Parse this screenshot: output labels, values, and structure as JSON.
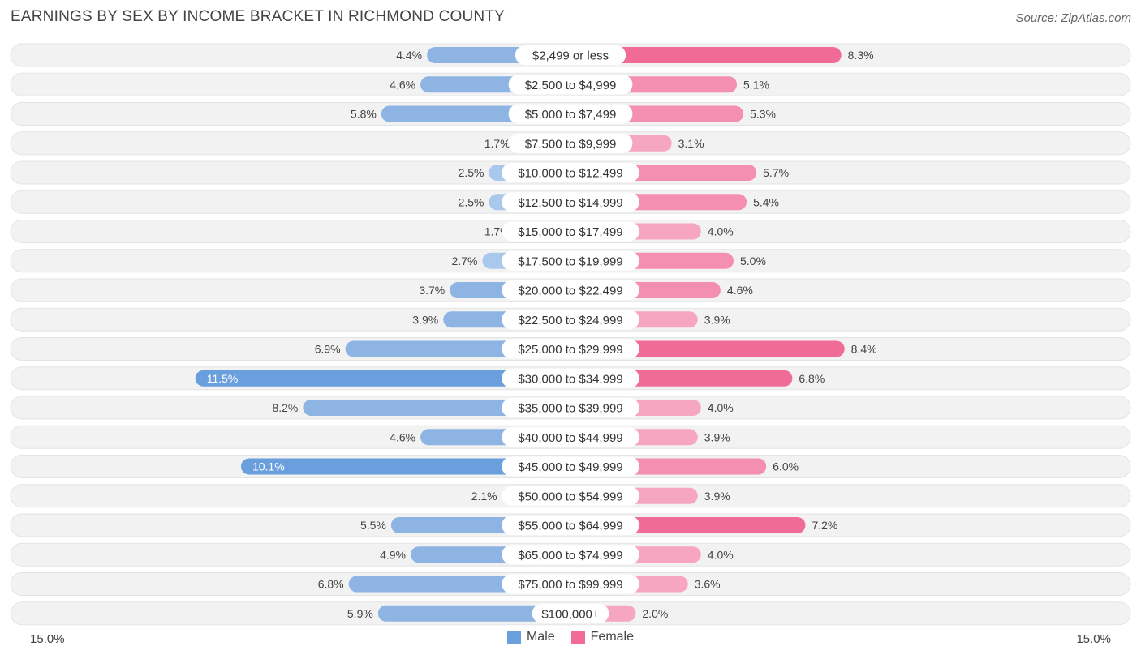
{
  "title": "EARNINGS BY SEX BY INCOME BRACKET IN RICHMOND COUNTY",
  "source": "Source: ZipAtlas.com",
  "colors": {
    "male": "#8db4e2",
    "male_strong": "#6a9fde",
    "female": "#f48fb1",
    "female_strong": "#f06c96",
    "row_bg": "#f2f2f2"
  },
  "chart_data": {
    "type": "bar",
    "orientation": "horizontal-diverging",
    "title": "EARNINGS BY SEX BY INCOME BRACKET IN RICHMOND COUNTY",
    "categories": [
      "$2,499 or less",
      "$2,500 to $4,999",
      "$5,000 to $7,499",
      "$7,500 to $9,999",
      "$10,000 to $12,499",
      "$12,500 to $14,999",
      "$15,000 to $17,499",
      "$17,500 to $19,999",
      "$20,000 to $22,499",
      "$22,500 to $24,999",
      "$25,000 to $29,999",
      "$30,000 to $34,999",
      "$35,000 to $39,999",
      "$40,000 to $44,999",
      "$45,000 to $49,999",
      "$50,000 to $54,999",
      "$55,000 to $64,999",
      "$65,000 to $74,999",
      "$75,000 to $99,999",
      "$100,000+"
    ],
    "series": [
      {
        "name": "Male",
        "values": [
          4.4,
          4.6,
          5.8,
          1.7,
          2.5,
          2.5,
          1.7,
          2.7,
          3.7,
          3.9,
          6.9,
          11.5,
          8.2,
          4.6,
          10.1,
          2.1,
          5.5,
          4.9,
          6.8,
          5.9
        ],
        "labels": [
          "4.4%",
          "4.6%",
          "5.8%",
          "1.7%",
          "2.5%",
          "2.5%",
          "1.7%",
          "2.7%",
          "3.7%",
          "3.9%",
          "6.9%",
          "11.5%",
          "8.2%",
          "4.6%",
          "10.1%",
          "2.1%",
          "5.5%",
          "4.9%",
          "6.8%",
          "5.9%"
        ]
      },
      {
        "name": "Female",
        "values": [
          8.3,
          5.1,
          5.3,
          3.1,
          5.7,
          5.4,
          4.0,
          5.0,
          4.6,
          3.9,
          8.4,
          6.8,
          4.0,
          3.9,
          6.0,
          3.9,
          7.2,
          4.0,
          3.6,
          2.0
        ],
        "labels": [
          "8.3%",
          "5.1%",
          "5.3%",
          "3.1%",
          "5.7%",
          "5.4%",
          "4.0%",
          "5.0%",
          "4.6%",
          "3.9%",
          "8.4%",
          "6.8%",
          "4.0%",
          "3.9%",
          "6.0%",
          "3.9%",
          "7.2%",
          "4.0%",
          "3.6%",
          "2.0%"
        ]
      }
    ],
    "xlim": [
      -15.0,
      15.0
    ],
    "axis_min_label": "15.0%",
    "axis_max_label": "15.0%",
    "legend": [
      "Male",
      "Female"
    ],
    "legend_position": "bottom-center"
  }
}
